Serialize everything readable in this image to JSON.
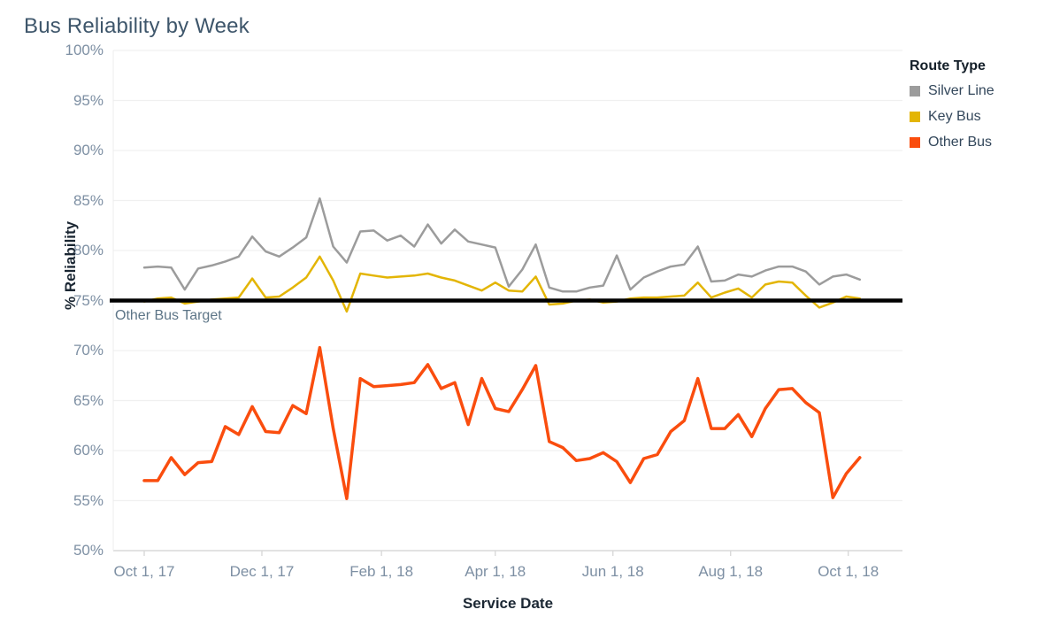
{
  "title": "Bus Reliability by Week",
  "colors": {
    "silver_line": "#9c9c9c",
    "key_bus": "#e3b505",
    "other_bus": "#fa4d0e",
    "reference_line": "#000000",
    "grid": "#f0f0f0",
    "axis_line": "#d9d9d9"
  },
  "y_axis": {
    "label": "% Reliability",
    "ticks": [
      "100%",
      "95%",
      "90%",
      "85%",
      "80%",
      "75%",
      "70%",
      "65%",
      "60%",
      "55%",
      "50%"
    ],
    "min": 50,
    "max": 100
  },
  "x_axis": {
    "label": "Service Date",
    "ticks": [
      "Oct 1, 17",
      "Dec 1, 17",
      "Feb 1, 18",
      "Apr 1, 18",
      "Jun 1, 18",
      "Aug 1, 18",
      "Oct 1, 18"
    ]
  },
  "legend": {
    "title": "Route Type",
    "items": [
      {
        "label": "Silver Line",
        "color": "#9c9c9c"
      },
      {
        "label": "Key Bus",
        "color": "#e3b505"
      },
      {
        "label": "Other Bus",
        "color": "#fa4d0e"
      }
    ]
  },
  "reference_line": {
    "label": "Other Bus Target",
    "value": 75
  },
  "chart_data": {
    "type": "line",
    "title": "Bus Reliability by Week",
    "xlabel": "Service Date",
    "ylabel": "% Reliability",
    "x_unit": "week",
    "x_start": "Oct 1, 2017",
    "x_end": "Oct 1, 2018",
    "ylim": [
      50,
      100
    ],
    "y_tick_step": 5,
    "grid": "horizontal",
    "legend_position": "top-right",
    "x_tick_days": [
      0,
      61,
      123,
      182,
      243,
      304,
      365
    ],
    "reference_value": 75,
    "series": [
      {
        "name": "Silver Line",
        "color": "#9c9c9c",
        "width": 2.5,
        "values": [
          78.3,
          78.4,
          78.3,
          76.1,
          78.2,
          78.5,
          78.9,
          79.4,
          81.4,
          79.9,
          79.4,
          80.3,
          81.3,
          85.2,
          80.4,
          78.8,
          81.9,
          82.0,
          81.0,
          81.5,
          80.4,
          82.6,
          80.7,
          82.1,
          80.9,
          80.6,
          80.3,
          76.4,
          78.1,
          80.6,
          76.3,
          75.9,
          75.9,
          76.3,
          76.5,
          79.5,
          76.1,
          77.3,
          77.9,
          78.4,
          78.6,
          80.4,
          76.9,
          77.0,
          77.6,
          77.4,
          78.0,
          78.4,
          78.4,
          77.9,
          76.6,
          77.4,
          77.6,
          77.1
        ]
      },
      {
        "name": "Key Bus",
        "color": "#e3b505",
        "width": 2.5,
        "values": [
          74.9,
          75.2,
          75.3,
          74.7,
          74.9,
          75.1,
          75.2,
          75.3,
          77.2,
          75.3,
          75.4,
          76.3,
          77.3,
          79.4,
          77.0,
          73.9,
          77.7,
          77.5,
          77.3,
          77.4,
          77.5,
          77.7,
          77.3,
          77.0,
          76.5,
          76.0,
          76.8,
          76.0,
          75.9,
          77.4,
          74.6,
          74.7,
          75.0,
          75.1,
          74.8,
          74.9,
          75.2,
          75.3,
          75.3,
          75.4,
          75.5,
          76.8,
          75.3,
          75.8,
          76.2,
          75.3,
          76.6,
          76.9,
          76.8,
          75.5,
          74.3,
          74.8,
          75.4,
          75.2
        ]
      },
      {
        "name": "Other Bus",
        "color": "#fa4d0e",
        "width": 3.5,
        "values": [
          57.0,
          57.0,
          59.3,
          57.6,
          58.8,
          58.9,
          62.4,
          61.6,
          64.4,
          61.9,
          61.8,
          64.5,
          63.7,
          70.3,
          62.2,
          55.2,
          67.2,
          66.4,
          66.5,
          66.6,
          66.8,
          68.6,
          66.2,
          66.8,
          62.6,
          67.2,
          64.2,
          63.9,
          66.1,
          68.5,
          60.9,
          60.3,
          59.0,
          59.2,
          59.8,
          58.9,
          56.8,
          59.2,
          59.6,
          61.9,
          63.0,
          67.2,
          62.2,
          62.2,
          63.6,
          61.4,
          64.2,
          66.1,
          66.2,
          64.8,
          63.8,
          55.3,
          57.7,
          59.3
        ]
      }
    ]
  }
}
